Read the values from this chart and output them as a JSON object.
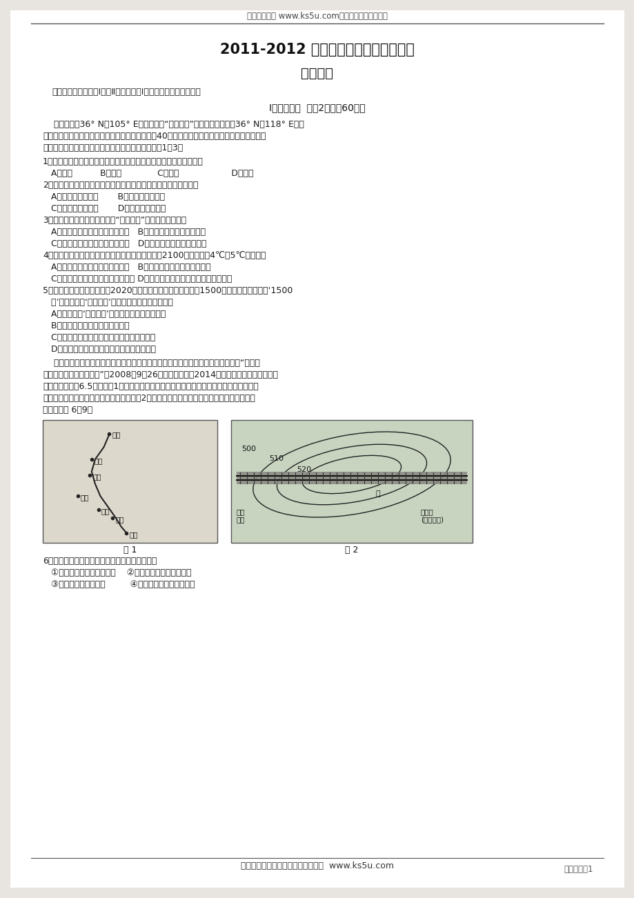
{
  "bg_color": "#f5f5f0",
  "page_bg": "#ffffff",
  "header_text": "高考资源网（ www.ks5u.com），您身边的高考专家",
  "title1": "2011-2012 学年度下学期期末质量检测",
  "title2": "高一地理",
  "notice": "注意事项：本试卷分Ⅰ卷和Ⅱ卷两部分，Ⅰ卷答案填涂在答题卡上。",
  "section": "Ⅰ卷（选择题  每题2分，內60分）",
  "intro_lines": [
    "    甘肃榆中（36° N，105° E）是我国的“高原夏菜”基地，山东寿光（36° N，118° E）是",
    "我国有名的蔬菜之乡，山东寿光蔬菜每年交易量各40亿吨，市场面向全国的大小城市甚至世界。",
    "寿光种植的反季节蔬菜每年冬天供不应求。据此回味1～3题"
  ],
  "questions": [
    "1．寿光反季节蔬菜大棚生产技术主要得益于改善了下列区位因素中的",
    "   A．热量          B．光照             C．地形                   D．水源",
    "2．寿光蔬菜得以在全国的大小城市甚至世界市场销售，主要得益于",
    "   A．优越的自然条件       B．过硬的产品质量",
    "   C．便捷的交通运输       D．完善的市场体系",
    "3．与寿光相比，甘肃榆中发展“高原夏菜”的优势自然条件有",
    "   A．位于黄土高原，土壤深厚肖沃   B．温带季风气候，雨热同期",
    "   C．海拔高，光照好，昼夜温差大   D．平原地形，地势平坦广阔",
    "4．热量条件制约着农作物的种类和分布范围。若儰2100年全球升温4℃～5℃，则我国",
    "   A．三江平原水稻种植面积将扩大   B．春小麦种植范围将向南扩展",
    "   C．南方山地毛竹分布的海拔将降低 D．辽东半岛适宜种植甜菜的面积将扩大",
    "5．根据广州市有关规定，到2020年末，全市常住人口应控制在1500万以内。应该说，这‘1500",
    "   万’是让广州人‘活得舒服’的指标。下列说法正确的是",
    "   A．让广州人‘活得舒服’的指标是指环境人口容量",
    "   B．该指标与对外开放程度成正比",
    "   C．该指标与资源数量、科技发展水平成反比",
    "   D．该指标与人口文化和生活消费水平成正比"
  ],
  "intro2_lines": [
    "    兰渝鐵路最早出自孫中山先生的《建国方略》。孫先生在《建国方略》中指出此线“经过物",
    "产极多、矿产极富之地区”。2008年9月26日在兰州开工，2014年全线通车。通车后，从兰",
    "州到重庆只需要6.5小时。图1为兰渝鐵路线路图，线路由北向南分别经过黄土高原、秦岭南",
    "坡、四川盆地低山丘陵区三大地貌单元，图2为兰渝鐵路经过地区部分路段的等高线示意图。",
    "读图，完成 6～9题"
  ],
  "map_caption1": "图 1",
  "map_caption2": "图 2",
  "questions2": [
    "6．该鐵路线通车后，旅客沿途可以看到成感受到",
    "   ①大漠孤烟直，长河落日圆    ②仰望山接天，俧视江如线",
    "   ③一道道梁来一道道川         ④晓见江山雾，宵闻夜雨来"
  ],
  "footer_text": "欢迎广大教师踊跃来稿，稿酬丰厚。  www.ks5u.com",
  "page_label": "高一地理第1"
}
